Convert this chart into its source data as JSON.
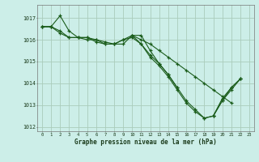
{
  "title": "Graphe pression niveau de la mer (hPa)",
  "bg_color": "#cceee8",
  "grid_color": "#aaccbb",
  "line_color": "#1a5c1a",
  "xlim": [
    -0.5,
    23.5
  ],
  "ylim": [
    1011.8,
    1017.6
  ],
  "yticks": [
    1012,
    1013,
    1014,
    1015,
    1016,
    1017
  ],
  "xticks": [
    0,
    1,
    2,
    3,
    4,
    5,
    6,
    7,
    8,
    9,
    10,
    11,
    12,
    13,
    14,
    15,
    16,
    17,
    18,
    19,
    20,
    21,
    22,
    23
  ],
  "series": [
    {
      "x": [
        0,
        1,
        2,
        3,
        4,
        5,
        6,
        7,
        8,
        9,
        10,
        11,
        12,
        13,
        14,
        15,
        16,
        17,
        18,
        19,
        20,
        21
      ],
      "y": [
        1016.6,
        1016.6,
        1017.1,
        1016.4,
        1016.1,
        1016.1,
        1016.0,
        1015.9,
        1015.8,
        1016.0,
        1016.2,
        1016.0,
        1015.8,
        1015.5,
        1015.2,
        1014.9,
        1014.6,
        1014.3,
        1014.0,
        1013.7,
        1013.4,
        1013.1
      ]
    },
    {
      "x": [
        0,
        1,
        2,
        3,
        4,
        5,
        6,
        7,
        8,
        9,
        10,
        11,
        12,
        13,
        14,
        15,
        16,
        17,
        18,
        19,
        20,
        21,
        22
      ],
      "y": [
        1016.6,
        1016.6,
        1016.4,
        1016.1,
        1016.1,
        1016.0,
        1016.0,
        1015.8,
        1015.8,
        1015.8,
        1016.2,
        1015.8,
        1015.2,
        1014.8,
        1014.3,
        1013.7,
        1013.1,
        1012.7,
        1012.4,
        1012.5,
        1013.2,
        1013.7,
        1014.2
      ]
    },
    {
      "x": [
        0,
        1,
        2,
        3,
        4,
        5,
        6,
        7,
        8,
        9,
        10,
        11,
        12,
        13,
        14,
        15,
        16,
        17,
        18,
        19,
        20,
        21,
        22
      ],
      "y": [
        1016.6,
        1016.6,
        1016.3,
        1016.1,
        1016.1,
        1016.1,
        1015.9,
        1015.8,
        1015.8,
        1016.0,
        1016.1,
        1015.8,
        1015.3,
        1014.9,
        1014.4,
        1013.8,
        1013.2,
        1012.8,
        1012.4,
        1012.5,
        1013.2,
        1013.8,
        1014.2
      ]
    },
    {
      "x": [
        10,
        11,
        12,
        13,
        14,
        15
      ],
      "y": [
        1016.2,
        1016.2,
        1015.5,
        1014.9,
        1014.4,
        1013.8
      ]
    },
    {
      "x": [
        19,
        20,
        21,
        22
      ],
      "y": [
        1012.5,
        1013.3,
        1013.8,
        1014.2
      ]
    }
  ]
}
